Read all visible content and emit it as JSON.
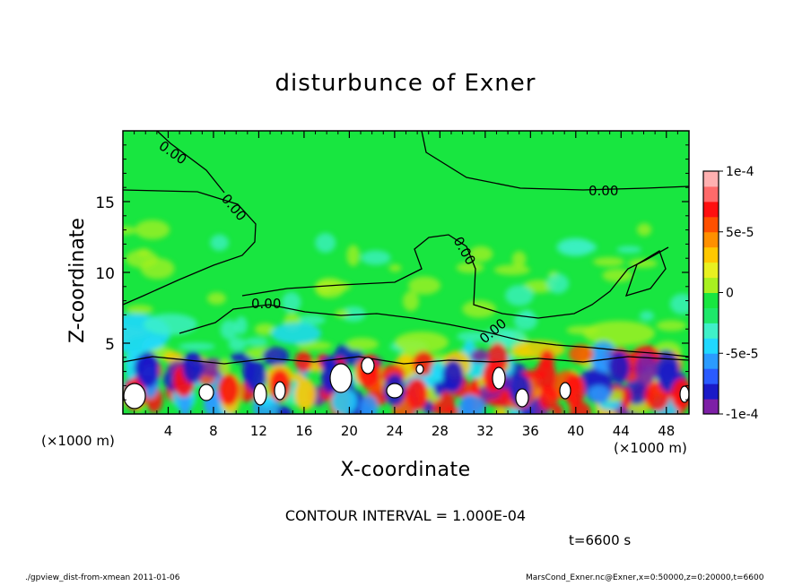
{
  "chart_data": {
    "type": "heatmap",
    "title": "disturbunce of Exner",
    "xlabel": "X-coordinate",
    "ylabel": "Z-coordinate",
    "x_unit_label": "(×1000 m)",
    "x_unit_label_right": "(×1000 m)",
    "xlim": [
      0,
      50
    ],
    "ylim": [
      0,
      20
    ],
    "x_ticks": [
      4,
      8,
      12,
      16,
      20,
      24,
      28,
      32,
      36,
      40,
      44,
      48
    ],
    "y_ticks": [
      5,
      10,
      15
    ],
    "colorbar": {
      "ticks": [
        "1e-4",
        "5e-5",
        "0",
        "-5e-5",
        "-1e-4"
      ],
      "tick_values": [
        0.0001,
        5e-05,
        0,
        -5e-05,
        -0.0001
      ],
      "range": [
        -0.0001,
        0.0001
      ],
      "colors": [
        "#7d1fa6",
        "#1a1ac8",
        "#2a5bff",
        "#2b9bff",
        "#20d8ff",
        "#3ff0c8",
        "#1ee86a",
        "#18e640",
        "#a8f020",
        "#e8f020",
        "#ffc800",
        "#ff9000",
        "#ff5000",
        "#ff1010",
        "#ff6a6a",
        "#ffb0b0"
      ]
    },
    "contour_labels": [
      "0.00",
      "0.00",
      "0.00",
      "0.00",
      "0.00",
      "0.00"
    ],
    "contour_interval_text": "CONTOUR INTERVAL = 1.000E-04",
    "time_text": "t=6600 s",
    "footer_left": "./gpview_dist-from-xmean  2011-01-06",
    "footer_right": "MarsCond_Exner.nc@Exner,x=0:50000,z=0:20000,t=6600"
  }
}
